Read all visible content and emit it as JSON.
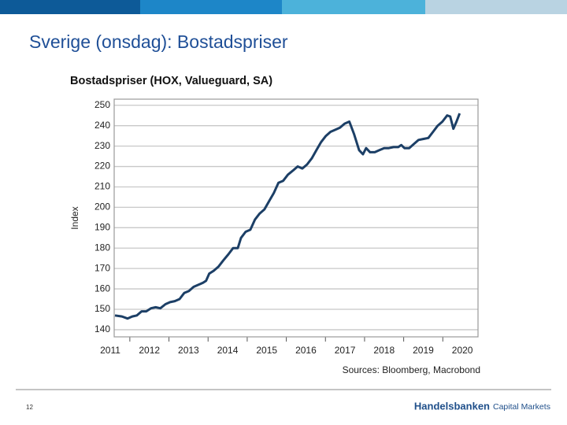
{
  "slide_title": "Sverige (onsdag): Bostadspriser",
  "page_number": "12",
  "brand": {
    "name": "Handelsbanken",
    "unit": "Capital Markets"
  },
  "chart_data": {
    "type": "line",
    "title": "Bostadspriser (HOX, Valueguard, SA)",
    "y_label": "Index",
    "source": "Sources: Bloomberg, Macrobond",
    "x": [
      2011.62,
      2011.8,
      2011.94,
      2012.06,
      2012.18,
      2012.3,
      2012.42,
      2012.54,
      2012.66,
      2012.78,
      2012.91,
      2013.03,
      2013.15,
      2013.27,
      2013.39,
      2013.51,
      2013.63,
      2013.75,
      2013.87,
      2013.95,
      2014.03,
      2014.15,
      2014.27,
      2014.39,
      2014.52,
      2014.64,
      2014.76,
      2014.84,
      2014.96,
      2015.08,
      2015.2,
      2015.32,
      2015.44,
      2015.56,
      2015.68,
      2015.8,
      2015.92,
      2016.04,
      2016.17,
      2016.29,
      2016.41,
      2016.53,
      2016.65,
      2016.77,
      2016.89,
      2017.01,
      2017.13,
      2017.25,
      2017.37,
      2017.49,
      2017.61,
      2017.73,
      2017.86,
      2017.96,
      2018.04,
      2018.14,
      2018.26,
      2018.38,
      2018.5,
      2018.62,
      2018.74,
      2018.86,
      2018.94,
      2019.02,
      2019.14,
      2019.26,
      2019.38,
      2019.51,
      2019.63,
      2019.75,
      2019.87,
      2019.99,
      2020.11,
      2020.19,
      2020.27,
      2020.35,
      2020.43
    ],
    "series": [
      {
        "name": "HOX",
        "color": "#1c3f66",
        "values": [
          147,
          146.5,
          145.5,
          146.5,
          147,
          149,
          149,
          150.5,
          151,
          150.5,
          152.5,
          153.5,
          154,
          155,
          158,
          159,
          161,
          162,
          163,
          164,
          167.5,
          169,
          171,
          174,
          177,
          180,
          180,
          185,
          188,
          189,
          194,
          197,
          199,
          203,
          207,
          212,
          213,
          216,
          218,
          220,
          219,
          221,
          224,
          228,
          232,
          235,
          237,
          238,
          239,
          241,
          242,
          236,
          228,
          226,
          229,
          227,
          227,
          228,
          229,
          229,
          229.5,
          229.5,
          230.5,
          229,
          229,
          231,
          233,
          233.5,
          234,
          237,
          240,
          242,
          245,
          244.5,
          238.5,
          242,
          246
        ]
      }
    ],
    "xlim": [
      2011.6,
      2020.9
    ],
    "xticks": [
      {
        "value": 2011.5,
        "label": "2011"
      },
      {
        "value": 2012.5,
        "label": "2012"
      },
      {
        "value": 2013.5,
        "label": "2013"
      },
      {
        "value": 2014.5,
        "label": "2014"
      },
      {
        "value": 2015.5,
        "label": "2015"
      },
      {
        "value": 2016.5,
        "label": "2016"
      },
      {
        "value": 2017.5,
        "label": "2017"
      },
      {
        "value": 2018.5,
        "label": "2018"
      },
      {
        "value": 2019.5,
        "label": "2019"
      },
      {
        "value": 2020.5,
        "label": "2020"
      }
    ],
    "ylim": [
      136.5,
      253
    ],
    "yticks": [
      140,
      150,
      160,
      170,
      180,
      190,
      200,
      210,
      220,
      230,
      240,
      250
    ],
    "grid": true
  }
}
